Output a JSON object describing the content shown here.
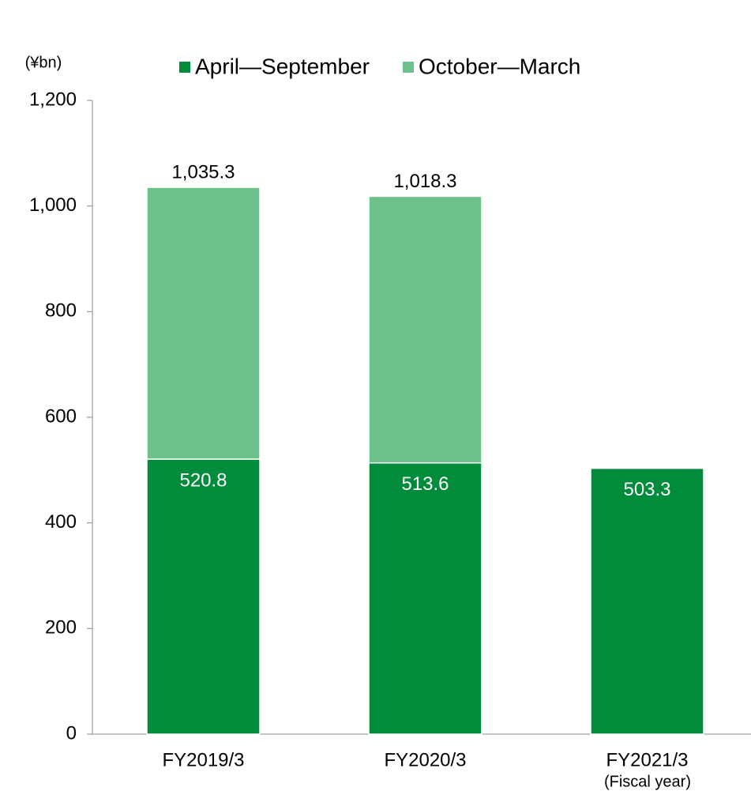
{
  "chart_data": {
    "type": "stacked_bar",
    "unit": "(¥bn)",
    "x_note": "(Fiscal year)",
    "categories": [
      "FY2019/3",
      "FY2020/3",
      "FY2021/3"
    ],
    "series": [
      {
        "name": "April—September",
        "color": "#008c3a",
        "values": [
          520.8,
          513.6,
          503.3
        ]
      },
      {
        "name": "October—March",
        "color": "#6dc18a",
        "values": [
          514.5,
          504.7,
          null
        ]
      }
    ],
    "totals": [
      1035.3,
      1018.3,
      null
    ],
    "total_labels": [
      "1,035.3",
      "1,018.3",
      null
    ],
    "ylim": [
      0,
      1200
    ],
    "yticks": [
      0,
      200,
      400,
      600,
      800,
      {
        "value": 1000,
        "label": "1,000"
      },
      {
        "value": 1200,
        "label": "1,200"
      }
    ],
    "legend": "top"
  }
}
